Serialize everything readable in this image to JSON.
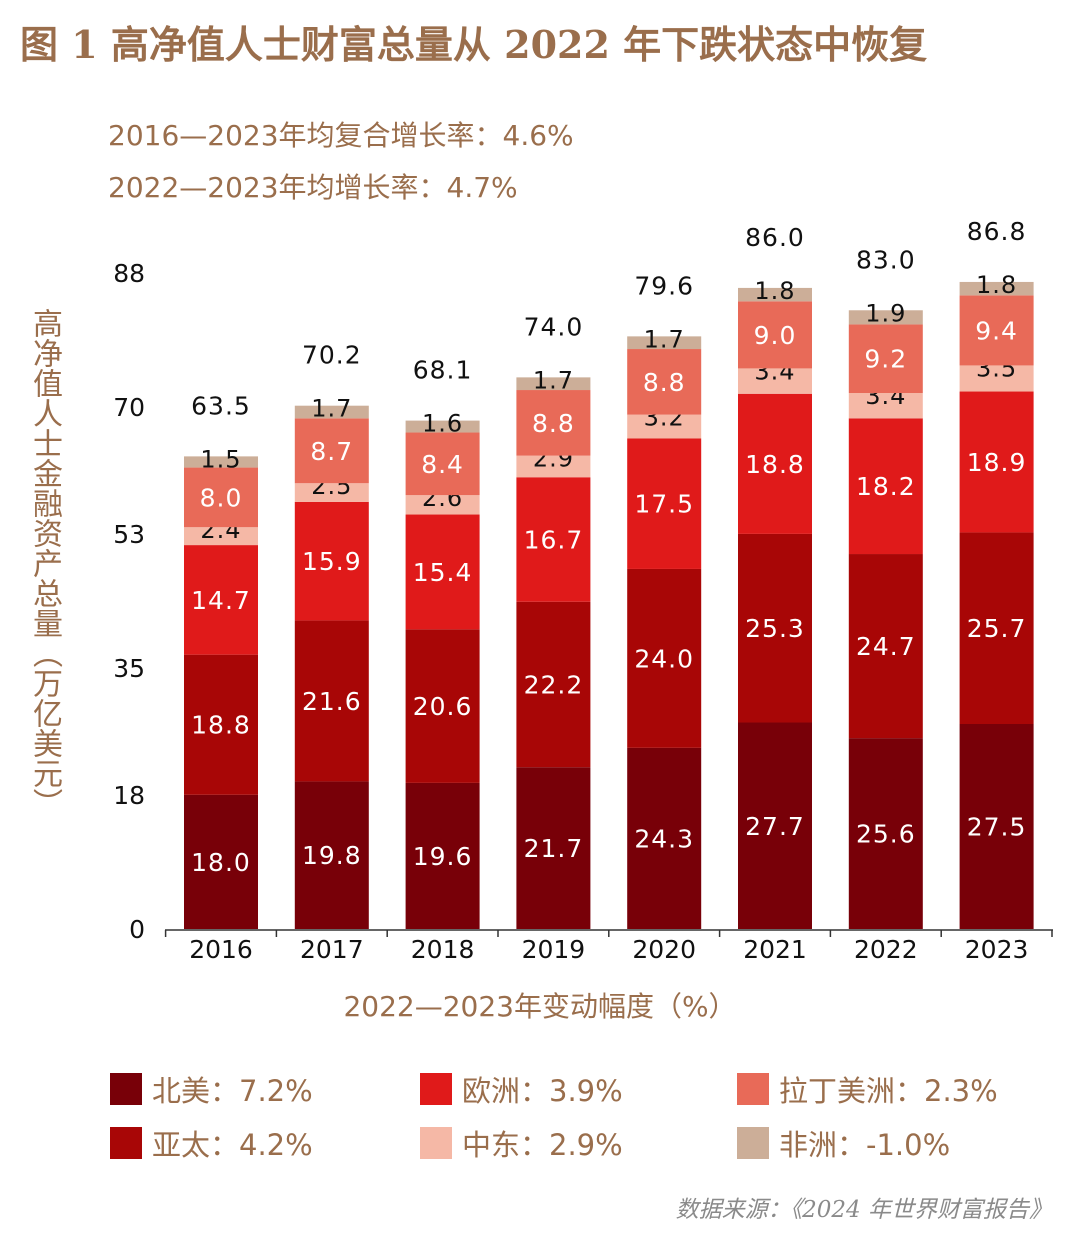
{
  "chart_data": {
    "type": "bar",
    "stacked": true,
    "title": "图 1 高净值人士财富总量从 2022 年下跌状态中恢复",
    "subtitles": [
      "2016—2023年均复合增长率：4.6%",
      "2022—2023年均增长率：4.7%"
    ],
    "ylabel": "高净值人士金融资产总量（万亿美元）",
    "xlabel": "2022—2023年变动幅度（%）",
    "ylim": [
      0,
      88
    ],
    "yticks": [
      "0",
      "18",
      "35",
      "53",
      "70",
      "88"
    ],
    "grid": false,
    "categories": [
      "2016",
      "2017",
      "2018",
      "2019",
      "2020",
      "2021",
      "2022",
      "2023"
    ],
    "totals": [
      "63.5",
      "70.2",
      "68.1",
      "74.0",
      "79.6",
      "86.0",
      "83.0",
      "86.8"
    ],
    "series": [
      {
        "name": "北美",
        "change": "7.2%",
        "color": "#780008",
        "label_color": "#ffffff",
        "values": [
          18.0,
          19.8,
          19.6,
          21.7,
          24.3,
          27.7,
          25.6,
          27.5
        ]
      },
      {
        "name": "亚太",
        "change": "4.2%",
        "color": "#a80606",
        "label_color": "#ffffff",
        "values": [
          18.8,
          21.6,
          20.6,
          22.2,
          24.0,
          25.3,
          24.7,
          25.7
        ]
      },
      {
        "name": "欧洲",
        "change": "3.9%",
        "color": "#e01a1a",
        "label_color": "#ffffff",
        "values": [
          14.7,
          15.9,
          15.4,
          16.7,
          17.5,
          18.8,
          18.2,
          18.9
        ]
      },
      {
        "name": "中东",
        "change": "2.9%",
        "color": "#f5b8a6",
        "label_color": "#111111",
        "values": [
          2.4,
          2.5,
          2.6,
          2.9,
          3.2,
          3.4,
          3.4,
          3.5
        ]
      },
      {
        "name": "拉丁美洲",
        "change": "2.3%",
        "color": "#e86a58",
        "label_color": "#ffffff",
        "values": [
          8.0,
          8.7,
          8.4,
          8.8,
          8.8,
          9.0,
          9.2,
          9.4
        ]
      },
      {
        "name": "非洲",
        "change": "-1.0%",
        "color": "#ccae98",
        "label_color": "#111111",
        "values": [
          1.5,
          1.7,
          1.6,
          1.7,
          1.7,
          1.8,
          1.9,
          1.8
        ]
      }
    ],
    "legend_position": "bottom"
  },
  "source": "数据来源：《2024 年世界财富报告》"
}
